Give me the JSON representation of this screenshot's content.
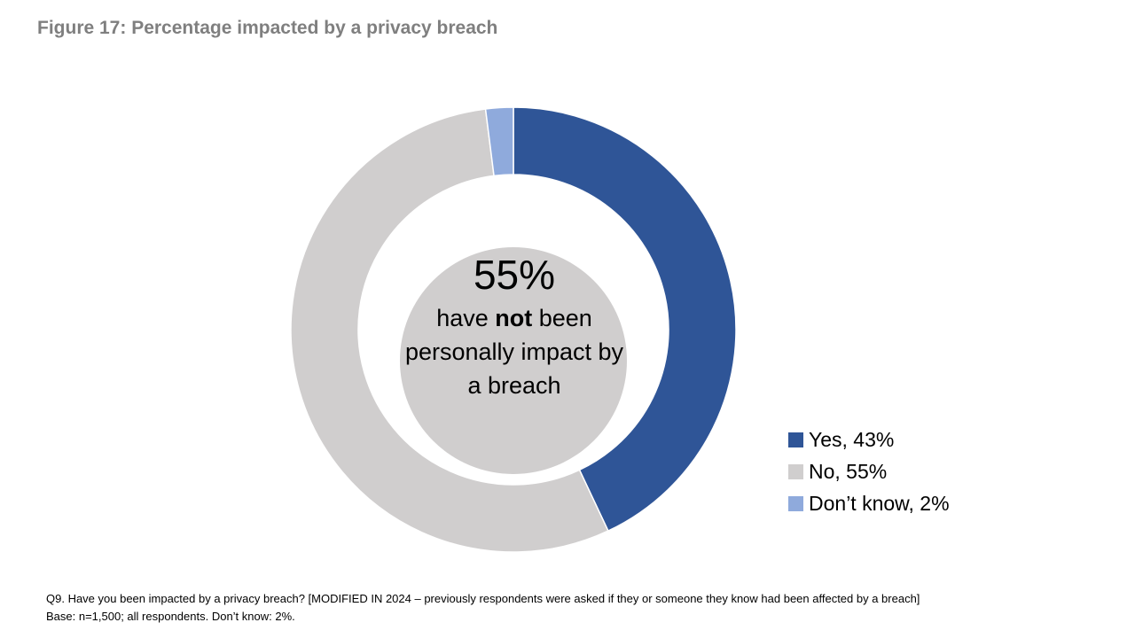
{
  "title": "Figure 17: Percentage impacted by a privacy breach",
  "chart_data": {
    "type": "pie",
    "subtype": "donut",
    "title": "Figure 17: Percentage impacted by a privacy breach",
    "slices": [
      {
        "label": "Yes, 43%",
        "name": "Yes",
        "value": 43,
        "color": "#2f5597"
      },
      {
        "label": "No, 55%",
        "name": "No",
        "value": 55,
        "color": "#d0cece"
      },
      {
        "label": "Don’t know, 2%",
        "name": "Don’t know",
        "value": 2,
        "color": "#8faadc"
      }
    ],
    "legend_position": "right"
  },
  "center": {
    "value": "55%",
    "line_pre": "have ",
    "line_bold": "not",
    "line_post": " been personally impact by a breach",
    "circle_color": "#d0cece"
  },
  "footnote": {
    "line1": "Q9. Have you been impacted by a privacy breach? [MODIFIED IN 2024 – previously respondents were asked  if they or someone they know had been affected by a breach]",
    "line2": "Base: n=1,500; all respondents. Don’t know: 2%."
  }
}
